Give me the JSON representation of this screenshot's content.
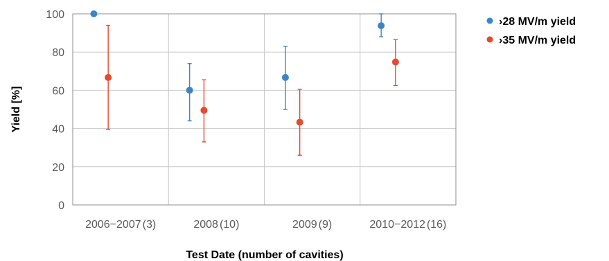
{
  "chart_data": {
    "type": "scatter",
    "title": "",
    "xlabel": "Test Date (number of cavities)",
    "ylabel": "Yield [%]",
    "ylim": [
      0,
      100
    ],
    "yticks": [
      0,
      20,
      40,
      60,
      80,
      100
    ],
    "grid": true,
    "legend_position": "top-right",
    "categories": [
      {
        "period": "2006−2007",
        "count": "(3)"
      },
      {
        "period": "2008",
        "count": "(10)"
      },
      {
        "period": "2009",
        "count": "(9)"
      },
      {
        "period": "2010−2012",
        "count": "(16)"
      }
    ],
    "series": [
      {
        "name": "›28 MV/m yield",
        "color": "#3d85c6",
        "values": [
          100,
          60,
          66.7,
          93.8
        ],
        "err_low": [
          100,
          44,
          50,
          88
        ],
        "err_high": [
          100,
          74,
          83,
          100
        ]
      },
      {
        "name": "›35 MV/m yield",
        "color": "#e8492c",
        "values": [
          66.7,
          49.5,
          43.3,
          74.8
        ],
        "err_low": [
          39.5,
          33,
          26,
          62.5
        ],
        "err_high": [
          94,
          65.5,
          60.5,
          86.5
        ]
      }
    ]
  }
}
